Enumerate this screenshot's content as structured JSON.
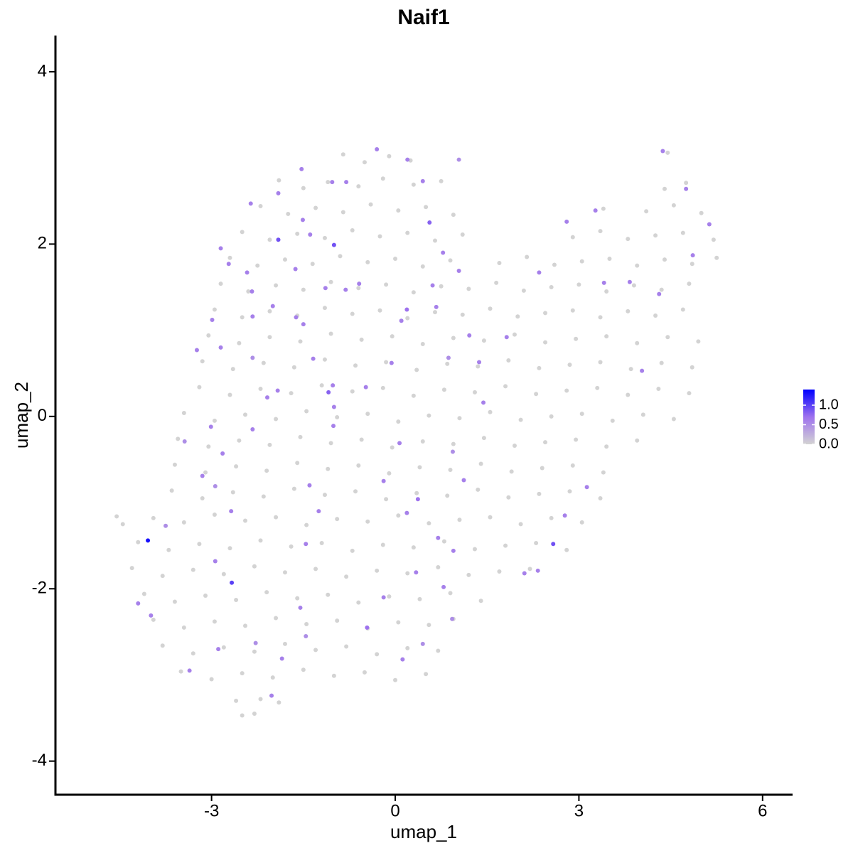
{
  "chart_data": {
    "type": "scatter",
    "title": "Naif1",
    "x_label": "umap_1",
    "y_label": "umap_2",
    "xlim": [
      -5.55,
      6.49
    ],
    "ylim": [
      -4.39,
      4.42
    ],
    "xticks": [
      -3,
      0,
      3,
      6
    ],
    "yticks": [
      -4,
      -2,
      0,
      2,
      4
    ],
    "colorbar": {
      "lim": [
        0,
        1.4
      ],
      "ticks": [
        {
          "value": 0,
          "label": "0.0"
        },
        {
          "value": 0.5,
          "label": "0.5"
        },
        {
          "value": 1,
          "label": "1.0"
        }
      ],
      "colors": [
        "#d3d3d3",
        "#9e72ee",
        "#0000ff"
      ]
    },
    "x": [
      -0.85,
      -0.5,
      -0.1,
      0.25,
      4.45,
      -1.9,
      -1.5,
      -1.1,
      -0.6,
      -0.2,
      0.3,
      0.75,
      4.4,
      4.75,
      -2.2,
      -1.75,
      -1.3,
      -0.85,
      -0.4,
      0.05,
      0.5,
      0.95,
      3.4,
      4.1,
      4.55,
      5.0,
      -2.5,
      -2.05,
      -1.6,
      -1.15,
      -0.7,
      -0.25,
      0.2,
      0.65,
      1.1,
      2.9,
      3.35,
      3.8,
      4.25,
      4.7,
      5.2,
      -2.7,
      -2.25,
      -1.8,
      -1.35,
      -0.9,
      -0.45,
      0,
      0.45,
      0.9,
      1.7,
      2.15,
      2.6,
      3.05,
      3.5,
      3.95,
      4.4,
      4.85,
      5.25,
      -2.85,
      -2.4,
      -1.95,
      -1.5,
      -1.05,
      -0.6,
      -0.15,
      0.3,
      0.75,
      1.2,
      1.65,
      2.1,
      2.55,
      3.0,
      3.45,
      3.9,
      4.35,
      4.8,
      -2.95,
      -2.5,
      -2.05,
      -1.6,
      -1.15,
      -0.7,
      -0.25,
      0.2,
      0.65,
      1.1,
      1.55,
      2.0,
      2.45,
      2.9,
      3.35,
      3.8,
      4.25,
      4.7,
      -3.05,
      -2.55,
      -2.05,
      -1.55,
      -1.05,
      -0.55,
      -0.05,
      0.45,
      0.95,
      1.45,
      1.95,
      2.45,
      2.95,
      3.45,
      3.95,
      4.45,
      4.95,
      -3.15,
      -2.65,
      -2.15,
      -1.65,
      -1.15,
      -0.65,
      -0.15,
      0.35,
      0.85,
      1.35,
      1.85,
      2.35,
      2.85,
      3.35,
      3.85,
      4.35,
      4.85,
      -3.2,
      -2.7,
      -2.2,
      -1.7,
      -1.2,
      -0.7,
      -0.2,
      0.3,
      0.8,
      1.3,
      1.8,
      2.3,
      2.8,
      3.3,
      3.8,
      4.3,
      4.8,
      -3.45,
      -2.95,
      -2.45,
      -1.95,
      -1.45,
      -0.95,
      -0.45,
      0.05,
      0.55,
      1.05,
      1.55,
      2.05,
      2.55,
      3.05,
      3.55,
      4.05,
      4.55,
      -3.55,
      -3.05,
      -2.55,
      -2.05,
      -1.55,
      -1.05,
      -0.55,
      -0.05,
      0.45,
      0.95,
      1.45,
      1.95,
      2.45,
      2.95,
      3.45,
      3.95,
      -3.6,
      -3.1,
      -2.6,
      -2.1,
      -1.6,
      -1.1,
      -0.6,
      -0.1,
      0.4,
      0.9,
      1.4,
      1.9,
      2.4,
      2.9,
      3.4,
      -3.65,
      -3.15,
      -2.65,
      -2.15,
      -1.65,
      -1.15,
      -0.65,
      -0.15,
      0.35,
      0.85,
      1.35,
      1.85,
      2.35,
      2.85,
      3.35,
      -4.55,
      -4.45,
      -3.95,
      -3.45,
      -2.95,
      -2.45,
      -1.95,
      -1.45,
      -0.95,
      -0.45,
      0.05,
      0.55,
      1.05,
      1.55,
      2.05,
      2.55,
      3.05,
      -4.2,
      -3.7,
      -3.2,
      -2.7,
      -2.2,
      -1.7,
      -1.2,
      -0.7,
      -0.2,
      0.3,
      0.8,
      1.3,
      1.8,
      2.3,
      2.8,
      -4.3,
      -3.8,
      -3.3,
      -2.8,
      -2.3,
      -1.8,
      -1.3,
      -0.8,
      -0.3,
      0.2,
      0.7,
      1.2,
      1.7,
      2.2,
      -4.1,
      -3.6,
      -3.1,
      -2.6,
      -2.1,
      -1.6,
      -1.1,
      -0.6,
      -0.1,
      0.4,
      0.9,
      1.4,
      -3.95,
      -3.45,
      -2.95,
      -2.45,
      -1.95,
      -1.45,
      -0.95,
      -0.45,
      0.05,
      0.55,
      0.95,
      -3.8,
      -3.3,
      -2.8,
      -2.3,
      -1.8,
      -1.3,
      -0.8,
      -0.3,
      0.2,
      0.7,
      -3.5,
      -3.0,
      -2.5,
      -2.0,
      -1.5,
      -1.0,
      -0.5,
      0.0,
      0.5,
      -2.6,
      -2.2,
      -1.9,
      -2.5,
      -2.3,
      -0.3,
      4.37,
      0.2,
      1.04,
      -2.85,
      -2.36,
      -3.24,
      -3.01,
      -3.44,
      -3.15,
      -2.94,
      -2.68,
      -2.94,
      -3.75,
      -4.2,
      -3.99,
      -3.36,
      -2.89,
      -2.02,
      -2.28,
      -1.46,
      -1.85,
      -1.55,
      -0.46,
      -0.19,
      0.12,
      0.45,
      0.34,
      0.93,
      0.79,
      0.7,
      0.95,
      0.37,
      0.19,
      -0.19,
      0.07,
      0.94,
      1.12,
      1.44,
      1.37,
      -0.06,
      0.1,
      0.19,
      1.21,
      1.82,
      0.87,
      0.61,
      0.67,
      0.78,
      1.04,
      2.35,
      2.8,
      3.27,
      3.41,
      4.31,
      4.03,
      4.75,
      5.13,
      4.86,
      3.13,
      2.77,
      2.33,
      2.11,
      -1.4,
      -1.25,
      -1.46,
      -1.01,
      -1.34,
      -1.5,
      -1.62,
      -1.92,
      -2.09,
      -2.33,
      -2.82,
      -2.33,
      -2.85,
      -2.99,
      -2.33,
      -2.0,
      -2.34,
      -2.42,
      -2.72,
      -1.39,
      -1.51,
      -1.63,
      -1.14,
      -0.8,
      -1.03,
      -1.53,
      -1.91,
      -0.81,
      -0.59,
      -1.0,
      -1.02,
      -0.48,
      0.45,
      3.83,
      -4.04,
      -2.67,
      2.58,
      -1.91,
      -1.0,
      0.56,
      -1.09
    ],
    "values": [
      3.04,
      2.95,
      3.02,
      2.97,
      3.06,
      2.74,
      2.65,
      2.72,
      2.67,
      2.76,
      2.69,
      2.73,
      2.64,
      2.71,
      2.44,
      2.35,
      2.42,
      2.37,
      2.46,
      2.39,
      2.43,
      2.34,
      2.41,
      2.38,
      2.45,
      2.36,
      2.14,
      2.05,
      2.12,
      2.07,
      2.16,
      2.09,
      2.13,
      2.04,
      2.11,
      2.08,
      2.15,
      2.06,
      2.1,
      2.13,
      2.05,
      1.84,
      1.75,
      1.82,
      1.77,
      1.86,
      1.79,
      1.83,
      1.74,
      1.81,
      1.78,
      1.85,
      1.76,
      1.8,
      1.83,
      1.75,
      1.82,
      1.77,
      1.84,
      1.54,
      1.45,
      1.52,
      1.47,
      1.56,
      1.49,
      1.53,
      1.44,
      1.51,
      1.48,
      1.55,
      1.46,
      1.5,
      1.53,
      1.45,
      1.52,
      1.47,
      1.54,
      1.24,
      1.15,
      1.22,
      1.17,
      1.26,
      1.19,
      1.23,
      1.14,
      1.21,
      1.18,
      1.25,
      1.16,
      1.2,
      1.23,
      1.15,
      1.22,
      1.17,
      1.24,
      0.94,
      0.85,
      0.92,
      0.87,
      0.96,
      0.89,
      0.93,
      0.84,
      0.91,
      0.88,
      0.95,
      0.86,
      0.9,
      0.93,
      0.85,
      0.92,
      0.87,
      0.64,
      0.55,
      0.62,
      0.57,
      0.66,
      0.59,
      0.63,
      0.54,
      0.61,
      0.58,
      0.65,
      0.56,
      0.6,
      0.63,
      0.55,
      0.62,
      0.57,
      0.34,
      0.25,
      0.32,
      0.27,
      0.36,
      0.29,
      0.33,
      0.24,
      0.31,
      0.28,
      0.35,
      0.26,
      0.3,
      0.33,
      0.25,
      0.32,
      0.27,
      0.04,
      -0.05,
      0.02,
      -0.03,
      0.06,
      -0.01,
      0.03,
      -0.06,
      0.01,
      -0.02,
      0.05,
      -0.04,
      0,
      0.03,
      -0.05,
      0.02,
      -0.03,
      -0.26,
      -0.35,
      -0.28,
      -0.33,
      -0.24,
      -0.31,
      -0.27,
      -0.36,
      -0.29,
      -0.32,
      -0.25,
      -0.34,
      -0.3,
      -0.27,
      -0.35,
      -0.28,
      -0.56,
      -0.65,
      -0.58,
      -0.63,
      -0.54,
      -0.61,
      -0.57,
      -0.66,
      -0.59,
      -0.62,
      -0.55,
      -0.64,
      -0.6,
      -0.57,
      -0.65,
      -0.86,
      -0.95,
      -0.88,
      -0.93,
      -0.84,
      -0.91,
      -0.87,
      -0.96,
      -0.89,
      -0.92,
      -0.85,
      -0.94,
      -0.9,
      -0.87,
      -0.95,
      -1.16,
      -1.25,
      -1.18,
      -1.23,
      -1.14,
      -1.21,
      -1.17,
      -1.26,
      -1.19,
      -1.22,
      -1.15,
      -1.24,
      -1.2,
      -1.17,
      -1.25,
      -1.18,
      -1.23,
      -1.46,
      -1.55,
      -1.48,
      -1.53,
      -1.44,
      -1.51,
      -1.47,
      -1.56,
      -1.49,
      -1.52,
      -1.45,
      -1.54,
      -1.5,
      -1.47,
      -1.55,
      -1.76,
      -1.85,
      -1.78,
      -1.83,
      -1.74,
      -1.81,
      -1.77,
      -1.86,
      -1.79,
      -1.82,
      -1.75,
      -1.84,
      -1.8,
      -1.77,
      -2.06,
      -2.15,
      -2.08,
      -2.13,
      -2.04,
      -2.11,
      -2.07,
      -2.16,
      -2.09,
      -2.12,
      -2.05,
      -2.14,
      -2.36,
      -2.45,
      -2.38,
      -2.43,
      -2.34,
      -2.41,
      -2.37,
      -2.46,
      -2.39,
      -2.42,
      -2.35,
      -2.66,
      -2.75,
      -2.68,
      -2.73,
      -2.64,
      -2.71,
      -2.67,
      -2.76,
      -2.69,
      -2.72,
      -2.96,
      -3.05,
      -2.98,
      -3.03,
      -2.94,
      -3.01,
      -2.97,
      -3.06,
      -2.99,
      -3.3,
      -3.28,
      -3.32,
      -3.47,
      -3.45,
      3.1,
      3.08,
      2.98,
      2.98,
      1.95,
      2.47,
      0.77,
      -0.12,
      -0.29,
      -0.69,
      -0.81,
      -1.1,
      -1.68,
      -1.27,
      -2.17,
      -2.31,
      -2.95,
      -2.7,
      -3.24,
      -2.63,
      -2.55,
      -2.81,
      -2.22,
      -2.45,
      -2.1,
      -2.82,
      -2.64,
      -1.81,
      -2.35,
      -1.98,
      -1.41,
      -1.56,
      -0.96,
      -1.12,
      -0.75,
      -0.31,
      -0.41,
      -0.74,
      0.16,
      0.63,
      0.62,
      1.11,
      1.24,
      0.94,
      0.92,
      0.68,
      1.52,
      1.27,
      1.9,
      1.69,
      1.67,
      2.26,
      2.39,
      1.55,
      1.42,
      0.53,
      2.64,
      2.23,
      1.87,
      -0.82,
      -1.15,
      -1.79,
      -1.82,
      -0.8,
      -1.1,
      -1.48,
      -0.11,
      0.67,
      1.07,
      1.15,
      0.3,
      0.22,
      -0.15,
      -0.43,
      0.68,
      0.8,
      1.12,
      1.16,
      1.28,
      1.45,
      1.67,
      1.77,
      2.11,
      2.28,
      1.71,
      1.49,
      2.72,
      2.72,
      2.87,
      2.59,
      1.47,
      1.54,
      0.11,
      0.36,
      0.34,
      2.73,
      1.56,
      -1.44,
      -1.93,
      -1.48,
      2.05,
      1.99,
      2.25,
      0.28
    ],
    "expression": [
      0,
      0,
      0,
      0,
      0,
      0,
      0,
      0,
      0,
      0,
      0,
      0,
      0,
      0,
      0,
      0,
      0,
      0,
      0,
      0,
      0,
      0,
      0,
      0,
      0,
      0,
      0,
      0,
      0,
      0,
      0,
      0,
      0,
      0,
      0,
      0,
      0,
      0,
      0,
      0,
      0,
      0,
      0,
      0,
      0,
      0,
      0,
      0,
      0,
      0,
      0,
      0,
      0,
      0,
      0,
      0,
      0,
      0,
      0,
      0,
      0,
      0,
      0,
      0,
      0,
      0,
      0,
      0,
      0,
      0,
      0,
      0,
      0,
      0,
      0,
      0,
      0,
      0,
      0,
      0,
      0,
      0,
      0,
      0,
      0,
      0,
      0,
      0,
      0,
      0,
      0,
      0,
      0,
      0,
      0,
      0,
      0,
      0,
      0,
      0,
      0,
      0,
      0,
      0,
      0,
      0,
      0,
      0,
      0,
      0,
      0,
      0,
      0,
      0,
      0,
      0,
      0,
      0,
      0,
      0,
      0,
      0,
      0,
      0,
      0,
      0,
      0,
      0,
      0,
      0,
      0,
      0,
      0,
      0,
      0,
      0,
      0,
      0,
      0,
      0,
      0,
      0,
      0,
      0,
      0,
      0,
      0,
      0,
      0,
      0,
      0,
      0,
      0,
      0,
      0,
      0,
      0,
      0,
      0,
      0,
      0,
      0,
      0,
      0,
      0,
      0,
      0,
      0,
      0,
      0,
      0,
      0,
      0,
      0,
      0,
      0,
      0,
      0,
      0,
      0,
      0,
      0,
      0,
      0,
      0,
      0,
      0,
      0,
      0,
      0,
      0,
      0,
      0,
      0,
      0,
      0,
      0,
      0,
      0,
      0,
      0,
      0,
      0,
      0,
      0,
      0,
      0,
      0,
      0,
      0,
      0,
      0,
      0,
      0,
      0,
      0,
      0,
      0,
      0,
      0,
      0,
      0,
      0,
      0,
      0,
      0,
      0,
      0,
      0,
      0,
      0,
      0,
      0,
      0,
      0,
      0,
      0,
      0,
      0,
      0,
      0,
      0,
      0,
      0,
      0,
      0,
      0,
      0,
      0,
      0,
      0,
      0,
      0,
      0,
      0,
      0,
      0,
      0,
      0,
      0,
      0,
      0,
      0,
      0,
      0,
      0,
      0,
      0,
      0,
      0,
      0,
      0,
      0,
      0,
      0,
      0,
      0,
      0,
      0,
      0,
      0,
      0,
      0,
      0,
      0,
      0,
      0,
      0,
      0,
      0,
      0,
      0,
      0,
      0,
      0,
      0,
      0,
      0,
      0,
      0,
      0,
      0,
      0.6,
      0.6,
      0.6,
      0.5,
      0.6,
      0.6,
      0.6,
      0.6,
      0.5,
      0.6,
      0.5,
      0.6,
      0.6,
      0.5,
      0.6,
      0.6,
      0.6,
      0.6,
      0.6,
      0.5,
      0.5,
      0.6,
      0.6,
      0.7,
      0.6,
      0.6,
      0.5,
      0.6,
      0.5,
      0.6,
      0.6,
      0.6,
      0.7,
      0.6,
      0.6,
      0.6,
      0.5,
      0.6,
      0.6,
      0.6,
      0.6,
      0.6,
      0.7,
      0.6,
      0.6,
      0.5,
      0.6,
      0.6,
      0.6,
      0.6,
      0.6,
      0.6,
      0.6,
      0.6,
      0.6,
      0.6,
      0.6,
      0.6,
      0.6,
      0.6,
      0.6,
      0.6,
      0.6,
      0.6,
      0.6,
      0.6,
      0.6,
      0.6,
      0.6,
      0.6,
      0.6,
      0.6,
      0.6,
      0.6,
      0.5,
      0.6,
      0.6,
      0.6,
      0.6,
      0.6,
      0.6,
      0.6,
      0.6,
      0.6,
      0.6,
      0.6,
      0.6,
      0.6,
      0.6,
      0.6,
      0.6,
      0.6,
      0.6,
      0.6,
      0.6,
      0.6,
      0.6,
      1.3,
      1.0,
      0.9,
      0.9,
      0.9,
      0.8,
      0.8
    ]
  }
}
